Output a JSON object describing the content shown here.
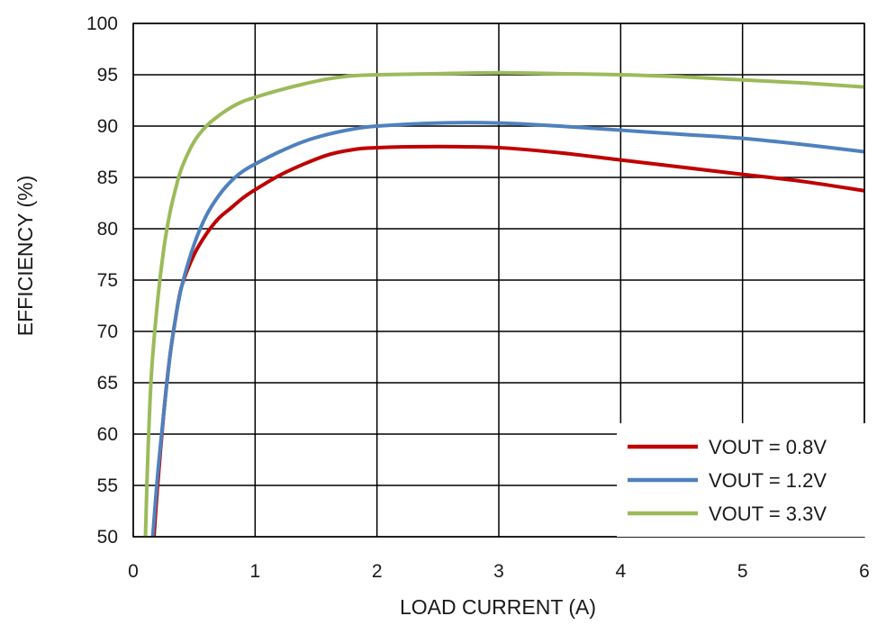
{
  "chart_data": {
    "type": "line",
    "title": "",
    "xlabel": "LOAD CURRENT (A)",
    "ylabel": "EFFICIENCY (%)",
    "xlim": [
      0,
      6
    ],
    "ylim": [
      50,
      100
    ],
    "xticks": [
      0,
      1,
      2,
      3,
      4,
      5,
      6
    ],
    "yticks": [
      50,
      55,
      60,
      65,
      70,
      75,
      80,
      85,
      90,
      95,
      100
    ],
    "grid": true,
    "legend_position": "bottom-right",
    "series": [
      {
        "name": "VOUT = 0.8V",
        "color": "#c00000",
        "x": [
          0.17,
          0.2,
          0.25,
          0.3,
          0.35,
          0.4,
          0.5,
          0.6,
          0.7,
          0.8,
          0.9,
          1.0,
          1.2,
          1.4,
          1.6,
          1.8,
          2.0,
          2.5,
          3.0,
          3.5,
          4.0,
          4.5,
          5.0,
          5.5,
          6.0
        ],
        "y": [
          50,
          55,
          62,
          67.5,
          71.5,
          74.5,
          77.5,
          79.5,
          81,
          82,
          83,
          83.8,
          85.2,
          86.3,
          87.2,
          87.7,
          87.9,
          88,
          87.9,
          87.4,
          86.7,
          86,
          85.3,
          84.6,
          83.7
        ]
      },
      {
        "name": "VOUT = 1.2V",
        "color": "#4f81bd",
        "x": [
          0.16,
          0.2,
          0.25,
          0.3,
          0.35,
          0.4,
          0.5,
          0.6,
          0.7,
          0.8,
          0.9,
          1.0,
          1.2,
          1.4,
          1.6,
          1.8,
          2.0,
          2.5,
          3.0,
          3.5,
          4.0,
          4.5,
          5.0,
          5.5,
          6.0
        ],
        "y": [
          50,
          56,
          62,
          67.5,
          71.5,
          74.5,
          78.5,
          81.3,
          83.2,
          84.6,
          85.6,
          86.3,
          87.5,
          88.5,
          89.2,
          89.7,
          90,
          90.3,
          90.3,
          90,
          89.6,
          89.2,
          88.8,
          88.2,
          87.5
        ]
      },
      {
        "name": "VOUT = 3.3V",
        "color": "#9bbb59",
        "x": [
          0.1,
          0.12,
          0.15,
          0.2,
          0.25,
          0.3,
          0.35,
          0.4,
          0.5,
          0.6,
          0.7,
          0.8,
          0.9,
          1.0,
          1.2,
          1.4,
          1.6,
          1.8,
          2.0,
          2.5,
          3.0,
          3.5,
          4.0,
          4.5,
          5.0,
          5.5,
          6.0
        ],
        "y": [
          50,
          58,
          66,
          73,
          78,
          81.5,
          84,
          86,
          88.5,
          90,
          91,
          91.8,
          92.4,
          92.8,
          93.5,
          94.1,
          94.6,
          94.9,
          95,
          95.1,
          95.2,
          95.1,
          95,
          94.8,
          94.5,
          94.2,
          93.8
        ]
      }
    ]
  }
}
